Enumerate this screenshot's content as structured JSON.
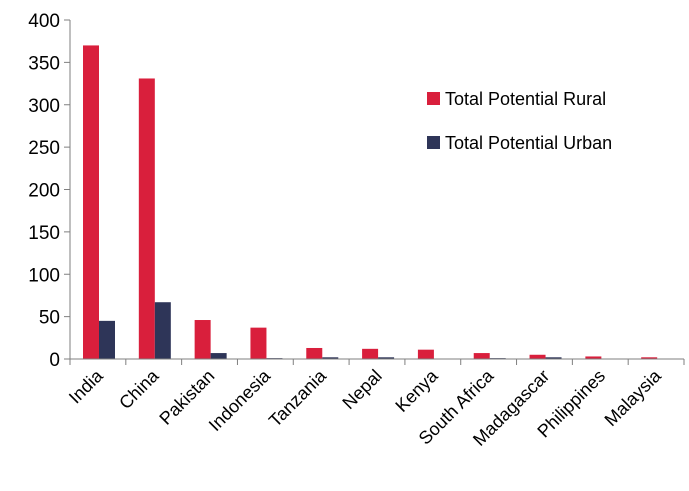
{
  "chart_data": {
    "type": "bar",
    "title": "",
    "xlabel": "",
    "ylabel": "",
    "ylim": [
      0,
      400
    ],
    "yticks": [
      "0",
      "50",
      "100",
      "150",
      "200",
      "250",
      "300",
      "350",
      "400"
    ],
    "grid": false,
    "legend_position": "upper-right",
    "categories": [
      "India",
      "China",
      "Pakistan",
      "Indonesia",
      "Tanzania",
      "Nepal",
      "Kenya",
      "South Africa",
      "Madagascar",
      "Philippines",
      "Malaysia"
    ],
    "series": [
      {
        "name": "Total Potential Rural",
        "color": "#d91f3c",
        "values": [
          370,
          331,
          46,
          37,
          13,
          12,
          11,
          7,
          5,
          3,
          2
        ]
      },
      {
        "name": "Total Potential Urban",
        "color": "#2e3558",
        "values": [
          45,
          67,
          7,
          1,
          2,
          2,
          0.5,
          1,
          2,
          0.5,
          0.5
        ]
      }
    ]
  }
}
